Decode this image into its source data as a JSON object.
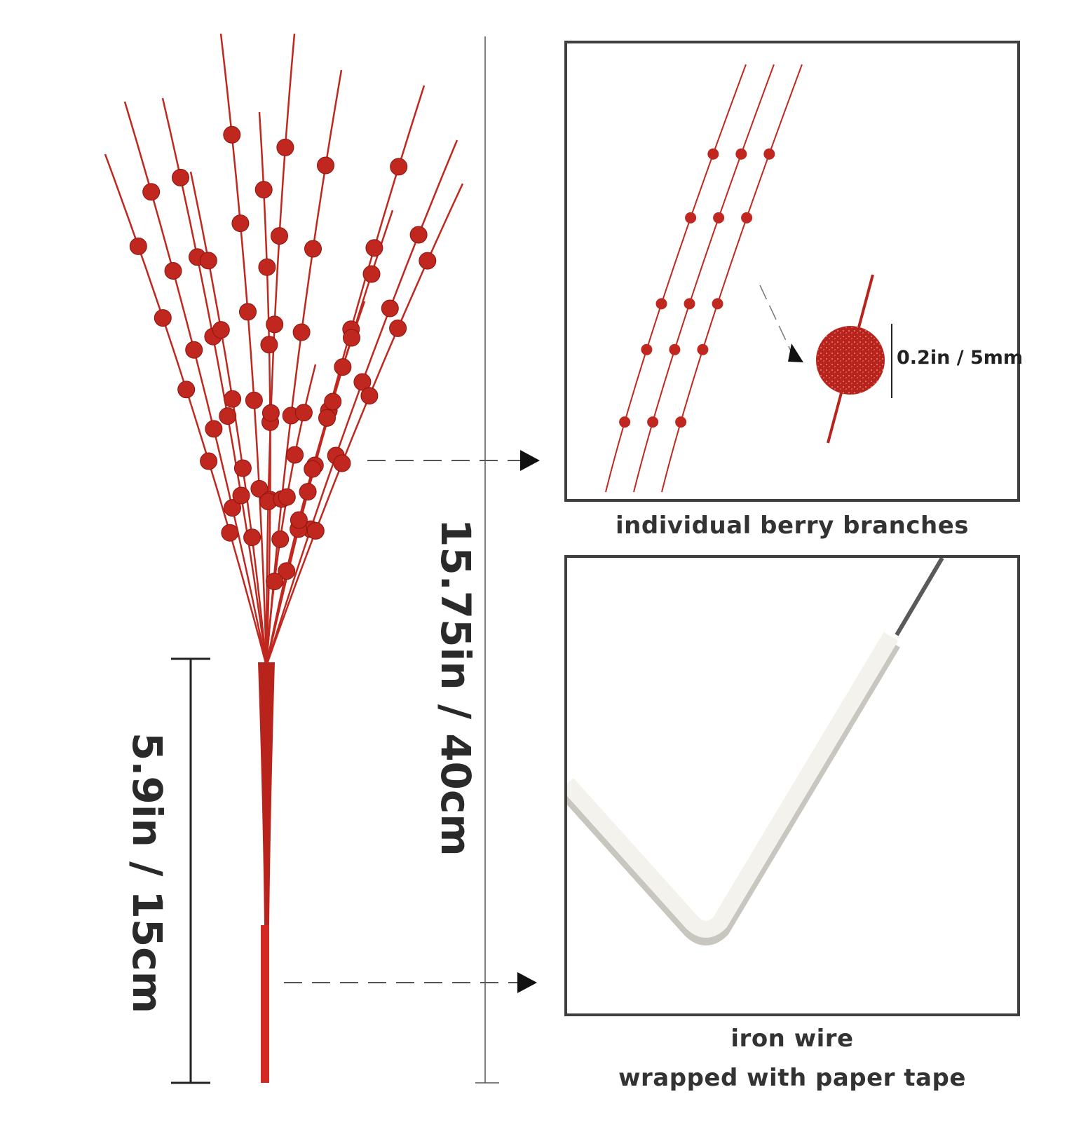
{
  "dimensions": {
    "total_length": "15.75in / 40cm",
    "stem_length": "5.9in / 15cm",
    "berry_diameter": "0.2in / 5mm"
  },
  "captions": {
    "top_panel": "individual berry branches",
    "bottom_panel_line1": "iron wire",
    "bottom_panel_line2": "wrapped with paper tape"
  },
  "colors": {
    "berry": "#c0271f",
    "berry_dark": "#8e1510",
    "stem_red": "#d22a22",
    "paper_wire": "#f3f1ec",
    "line": "#2b2b2b",
    "panel_border": "#3f3f3f"
  }
}
